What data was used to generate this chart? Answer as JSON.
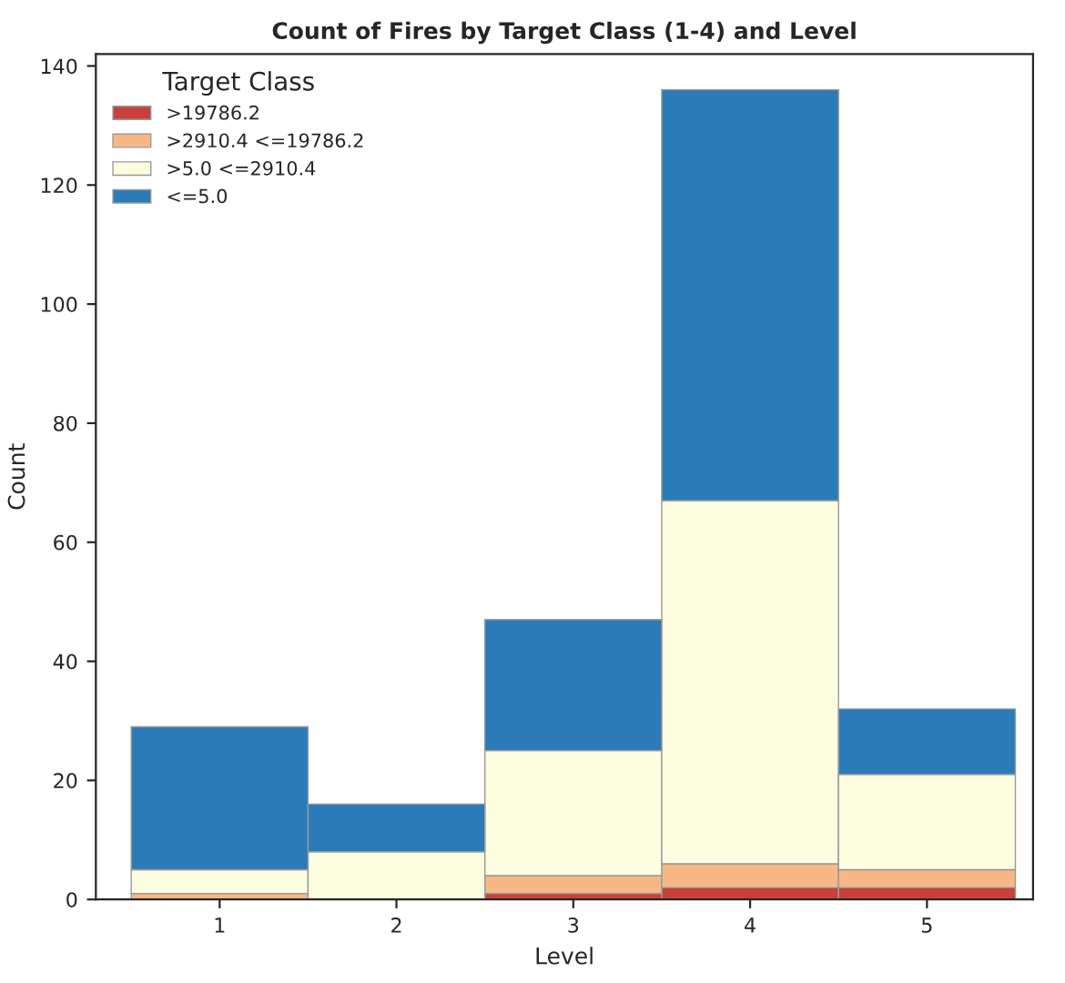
{
  "chart_data": {
    "type": "bar",
    "title": "Count of Fires by Target Class (1-4) and Level",
    "xlabel": "Level",
    "ylabel": "Count",
    "legend_title": "Target Class",
    "categories": [
      "1",
      "2",
      "3",
      "4",
      "5"
    ],
    "stacked": true,
    "series": [
      {
        "name": ">19786.2",
        "color": "#c8403c",
        "values": [
          0,
          0,
          1,
          2,
          2
        ]
      },
      {
        "name": ">2910.4 <=19786.2",
        "color": "#f7b886",
        "values": [
          1,
          0,
          3,
          4,
          3
        ]
      },
      {
        "name": ">5.0 <=2910.4",
        "color": "#fdfde0",
        "values": [
          4,
          8,
          21,
          61,
          16
        ]
      },
      {
        "name": "<=5.0",
        "color": "#2b7bb9",
        "values": [
          24,
          8,
          22,
          69,
          11
        ]
      }
    ],
    "ylim": [
      0,
      142
    ],
    "yticks": [
      0,
      20,
      40,
      60,
      80,
      100,
      120,
      140
    ],
    "grid": false,
    "legend": "top left"
  }
}
